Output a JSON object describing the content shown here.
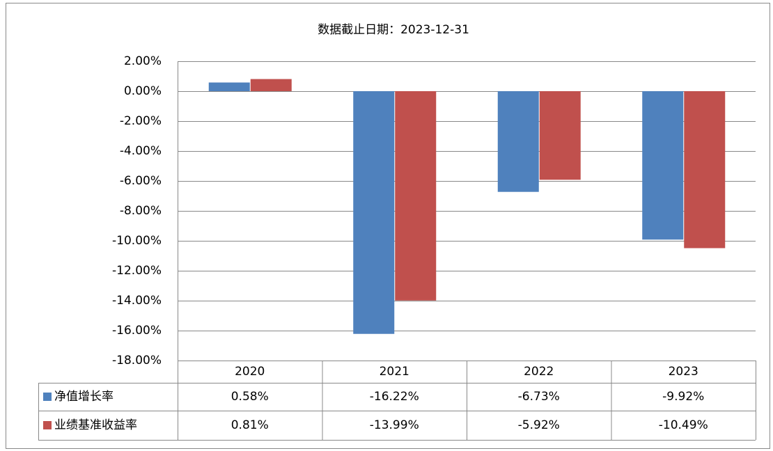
{
  "chart_data": {
    "type": "bar",
    "title": "数据截止日期：2023-12-31",
    "categories": [
      "2020",
      "2021",
      "2022",
      "2023"
    ],
    "series": [
      {
        "name": "净值增长率",
        "color": "#4f81bd",
        "values": [
          0.58,
          -16.22,
          -6.73,
          -9.92
        ],
        "value_labels": [
          "0.58%",
          "-16.22%",
          "-6.73%",
          "-9.92%"
        ]
      },
      {
        "name": "业绩基准收益率",
        "color": "#c0504d",
        "values": [
          0.81,
          -13.99,
          -5.92,
          -10.49
        ],
        "value_labels": [
          "0.81%",
          "-13.99%",
          "-5.92%",
          "-10.49%"
        ]
      }
    ],
    "ylim": [
      -18,
      2
    ],
    "yticks": [
      {
        "value": -18,
        "label": "-18.00%"
      },
      {
        "value": -16,
        "label": "-16.00%"
      },
      {
        "value": -14,
        "label": "-14.00%"
      },
      {
        "value": -12,
        "label": "-12.00%"
      },
      {
        "value": -10,
        "label": "-10.00%"
      },
      {
        "value": -8,
        "label": "-8.00%"
      },
      {
        "value": -6,
        "label": "-6.00%"
      },
      {
        "value": -4,
        "label": "-4.00%"
      },
      {
        "value": -2,
        "label": "-2.00%"
      },
      {
        "value": 0,
        "label": "0.00%"
      },
      {
        "value": 2,
        "label": "2.00%"
      }
    ],
    "grid": true
  }
}
